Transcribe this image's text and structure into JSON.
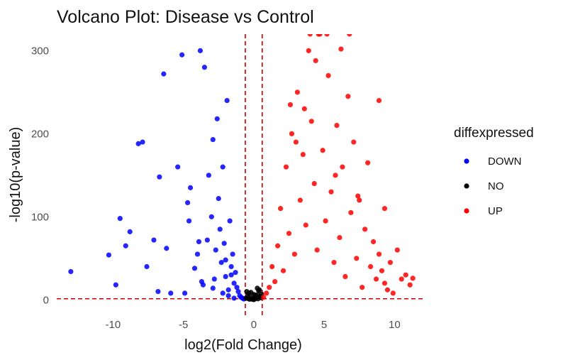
{
  "chart_data": {
    "type": "scatter",
    "title": "Volcano Plot: Disease vs Control",
    "xlabel": "log2(Fold Change)",
    "ylabel": "-log10(p-value)",
    "xlim": [
      -14,
      12.2
    ],
    "ylim": [
      -22,
      320
    ],
    "x_ticks": [
      -10,
      -5,
      0,
      5,
      10
    ],
    "y_ticks": [
      0,
      100,
      200,
      300
    ],
    "grid": false,
    "legend_position": "right",
    "legend_title": "diffexpressed",
    "thresholds": {
      "log2fc": [
        -0.6,
        0.6
      ],
      "neg_log10_p": 1.3,
      "color": "#cc0000"
    },
    "series": [
      {
        "name": "DOWN",
        "color": "#0000ff",
        "x": [
          -13,
          -10.3,
          -9.8,
          -9.5,
          -9.1,
          -8.8,
          -8.2,
          -7.9,
          -7.6,
          -7.1,
          -6.8,
          -6.7,
          -6.4,
          -6.2,
          -5.9,
          -5.4,
          -5.1,
          -4.9,
          -4.7,
          -4.5,
          -4.2,
          -4.0,
          -3.8,
          -3.6,
          -3.5,
          -3.3,
          -3.2,
          -3.0,
          -2.9,
          -2.8,
          -2.6,
          -2.5,
          -2.4,
          -2.3,
          -2.2,
          -2.1,
          -2.0,
          -1.9,
          -1.8,
          -1.7,
          -1.6,
          -1.5,
          -1.4,
          -1.3,
          -1.2,
          -1.1,
          -1.0,
          -0.9,
          -0.8,
          -0.7,
          -4.6,
          -3.9,
          -2.7,
          -2.0,
          -1.6,
          -3.7,
          -2.9,
          -2.2,
          -1.8,
          -1.4
        ],
        "y": [
          34,
          54,
          18,
          98,
          65,
          82,
          188,
          190,
          40,
          72,
          10,
          148,
          272,
          62,
          8,
          160,
          295,
          8,
          117,
          135,
          38,
          55,
          300,
          18,
          280,
          72,
          150,
          100,
          193,
          25,
          218,
          122,
          85,
          45,
          160,
          68,
          28,
          240,
          12,
          95,
          40,
          55,
          20,
          33,
          15,
          10,
          5,
          3,
          2,
          1,
          95,
          70,
          60,
          48,
          30,
          22,
          14,
          8,
          5,
          2
        ]
      },
      {
        "name": "NO",
        "color": "#000000",
        "x": [
          -0.55,
          -0.45,
          -0.35,
          -0.25,
          -0.15,
          -0.05,
          0.05,
          0.15,
          0.25,
          0.35,
          0.45,
          0.55,
          -0.4,
          -0.2,
          0.0,
          0.2,
          0.4,
          -0.3,
          0.1,
          0.3,
          0.5,
          -0.5,
          0.0,
          0.25
        ],
        "y": [
          2,
          5,
          8,
          3,
          1,
          0.5,
          0.8,
          2,
          6,
          11,
          4,
          7,
          1.5,
          9,
          0.3,
          3.5,
          12,
          0.7,
          5.5,
          1.2,
          2.5,
          10,
          6.5,
          14
        ]
      },
      {
        "name": "UP",
        "color": "#ff0000",
        "x": [
          0.7,
          0.9,
          1.1,
          1.3,
          1.5,
          1.7,
          1.9,
          2.1,
          2.3,
          2.5,
          2.7,
          2.9,
          3.1,
          3.3,
          3.5,
          3.7,
          3.9,
          4.1,
          4.3,
          4.5,
          4.7,
          4.9,
          5.1,
          5.3,
          5.5,
          5.7,
          5.9,
          6.1,
          6.3,
          6.5,
          6.7,
          6.9,
          7.1,
          7.3,
          7.5,
          7.7,
          7.9,
          8.1,
          8.3,
          8.5,
          8.7,
          8.9,
          9.1,
          9.3,
          9.5,
          9.7,
          9.9,
          10.2,
          10.5,
          10.8,
          11.1,
          11.3,
          4.0,
          4.6,
          5.2,
          3.6,
          6.8,
          6.2,
          4.4,
          8.9,
          2.6,
          3.0,
          5.8,
          7.4,
          9.3
        ],
        "y": [
          3,
          8,
          15,
          40,
          22,
          65,
          110,
          35,
          160,
          80,
          200,
          55,
          250,
          120,
          175,
          90,
          300,
          215,
          140,
          60,
          320,
          180,
          95,
          270,
          130,
          45,
          210,
          75,
          160,
          28,
          245,
          105,
          190,
          50,
          120,
          15,
          85,
          165,
          40,
          70,
          25,
          55,
          35,
          20,
          12,
          45,
          8,
          60,
          25,
          30,
          18,
          26,
          320,
          320,
          320,
          230,
          320,
          302,
          288,
          240,
          235,
          190,
          150,
          125,
          110
        ]
      }
    ]
  }
}
